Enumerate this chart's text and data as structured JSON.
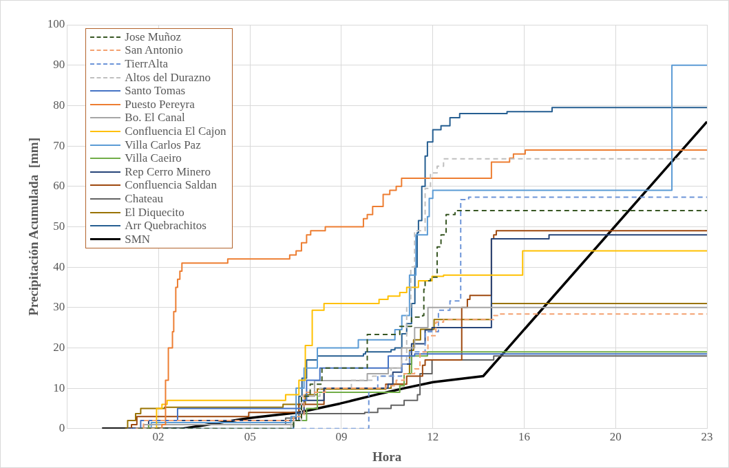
{
  "chart_data": {
    "type": "step",
    "xlabel": "Hora",
    "ylabel": "Precipitación Acumulada  [mm]",
    "xlim": [
      -1.86,
      23.14
    ],
    "xticks": [
      {
        "value": 1.71,
        "label": "02"
      },
      {
        "value": 5.29,
        "label": "05"
      },
      {
        "value": 8.86,
        "label": "09"
      },
      {
        "value": 12.43,
        "label": "12"
      },
      {
        "value": 16.0,
        "label": "16"
      },
      {
        "value": 19.57,
        "label": "20"
      },
      {
        "value": 23.14,
        "label": "23"
      }
    ],
    "ylim": [
      0,
      100
    ],
    "yticks": [
      0,
      10,
      20,
      30,
      40,
      50,
      60,
      70,
      80,
      90,
      100
    ],
    "grid": true,
    "legend": "top left",
    "marker": "none",
    "series": [
      {
        "name": "Jose Muñoz",
        "color": "#375623",
        "type": "step",
        "line_style": "dashed",
        "x": [
          0.92,
          6.99,
          7.3,
          7.64,
          8.1,
          9.87,
          11.14,
          11.6,
          12.03,
          12.08,
          12.13,
          12.34,
          12.6,
          12.75,
          12.95,
          13.3,
          23.14
        ],
        "values": [
          0,
          2,
          8,
          11,
          15,
          23.3,
          25.3,
          27.6,
          28,
          34.5,
          36.6,
          37.5,
          45,
          48,
          53,
          54,
          54
        ]
      },
      {
        "name": "San Antonio",
        "color": "#f4a170",
        "type": "step",
        "line_style": "dashed",
        "x": [
          0.82,
          1.13,
          6.99,
          7.4,
          8.23,
          10.6,
          11.0,
          11.31,
          11.72,
          11.93,
          12.24,
          12.55,
          12.85,
          14.81,
          15.03,
          23.14
        ],
        "values": [
          0,
          2,
          3,
          9,
          10,
          10.6,
          12,
          13.6,
          14.8,
          19,
          23,
          26.4,
          27,
          28,
          28.4,
          28.4
        ]
      },
      {
        "name": "TierrAlta",
        "color": "#6c94d8",
        "type": "step",
        "line_style": "dashed",
        "x": [
          7.3,
          9.93,
          10.28,
          11.21,
          11.52,
          12.13,
          12.65,
          13.1,
          13.48,
          13.52,
          13.83,
          23.14
        ],
        "values": [
          0,
          10,
          13,
          16,
          19,
          24,
          29.3,
          31.6,
          32.3,
          56.7,
          57.3,
          57.3
        ]
      },
      {
        "name": "Altos del Durazno",
        "color": "#bfbfbf",
        "type": "step",
        "line_style": "dashed",
        "x": [
          1.13,
          6.89,
          7.3,
          8.02,
          9.25,
          10.08,
          10.8,
          11.21,
          11.41,
          11.57,
          11.72,
          12.13,
          12.34,
          12.6,
          12.85,
          23.14
        ],
        "values": [
          0,
          2,
          8,
          10,
          12,
          13,
          15,
          17,
          30,
          40,
          49,
          59.5,
          63.3,
          65,
          66.8,
          66.8
        ]
      },
      {
        "name": "Santo Tomas",
        "color": "#4472c4",
        "type": "step",
        "line_style": "solid",
        "x": [
          0.51,
          1.02,
          2.46,
          7.3,
          7.5,
          8.02,
          10.69,
          11.72,
          23.14
        ],
        "values": [
          0,
          2,
          5,
          7,
          12,
          15,
          18,
          18.5,
          18.5
        ]
      },
      {
        "name": "Puesto Pereyra",
        "color": "#ed7d31",
        "type": "step",
        "line_style": "solid",
        "x": [
          0.82,
          1.85,
          1.99,
          2.1,
          2.26,
          2.31,
          2.39,
          2.46,
          2.55,
          2.63,
          4.42,
          6.84,
          7.09,
          7.3,
          7.5,
          7.66,
          8.23,
          9.72,
          9.87,
          10.08,
          10.49,
          10.75,
          11.0,
          11.21,
          14.72,
          15.43,
          15.58,
          16.04,
          23.14
        ],
        "values": [
          0,
          1,
          12,
          20,
          24,
          29,
          35,
          37,
          39,
          41,
          42,
          43,
          44,
          46,
          48,
          49,
          50,
          52,
          53,
          55,
          58,
          59,
          60,
          62,
          66,
          67,
          68,
          69,
          69
        ]
      },
      {
        "name": "Bo. El Canal",
        "color": "#a5a5a5",
        "type": "step",
        "line_style": "solid",
        "x": [
          0.71,
          1.13,
          6.99,
          7.3,
          7.81,
          9.87,
          10.69,
          11.21,
          11.72,
          12.24,
          23.14
        ],
        "values": [
          0,
          1,
          2,
          8,
          11.9,
          13.6,
          15,
          20,
          25,
          30,
          30
        ]
      },
      {
        "name": "Confluencia El Cajon",
        "color": "#ffc000",
        "type": "step",
        "line_style": "solid",
        "x": [
          1.43,
          1.64,
          1.85,
          2.05,
          6.68,
          7.2,
          7.45,
          7.72,
          8.18,
          10.33,
          10.68,
          11.14,
          11.41,
          11.87,
          12.4,
          12.85,
          15.94,
          23.14
        ],
        "values": [
          0,
          5,
          6,
          7,
          8.4,
          12,
          20.6,
          29.3,
          31,
          32,
          32.8,
          33.7,
          35,
          36.6,
          37.7,
          38,
          44,
          44
        ]
      },
      {
        "name": "Villa Carlos Paz",
        "color": "#5b9bd5",
        "type": "step",
        "line_style": "solid",
        "x": [
          1.13,
          1.43,
          6.89,
          7.09,
          7.4,
          7.92,
          9.52,
          10.95,
          11.22,
          11.52,
          11.77,
          12.22,
          12.29,
          12.43,
          21.77,
          23.14
        ],
        "values": [
          0,
          1.5,
          3,
          10,
          15,
          20,
          22,
          24.5,
          28,
          38,
          48,
          52.5,
          57,
          59,
          90,
          90
        ]
      },
      {
        "name": "Villa Caeiro",
        "color": "#70ad47",
        "type": "step",
        "line_style": "solid",
        "x": [
          0.82,
          1.33,
          6.99,
          7.5,
          7.92,
          11.14,
          11.31,
          11.6,
          12.22,
          23.14
        ],
        "values": [
          0,
          1,
          2,
          5,
          9,
          10.6,
          13.6,
          18,
          19,
          19
        ]
      },
      {
        "name": "Rep Cerro Minero",
        "color": "#264478",
        "type": "step",
        "line_style": "solid",
        "x": [
          0.82,
          1.33,
          7.09,
          7.4,
          8.18,
          10.68,
          10.87,
          11.22,
          11.6,
          12.13,
          12.4,
          14.72,
          16.97,
          23.14
        ],
        "values": [
          0,
          2,
          4,
          7,
          10,
          11,
          14,
          16,
          21,
          24.4,
          25,
          47,
          48,
          48
        ]
      },
      {
        "name": "Confluencia Saldan",
        "color": "#9e480e",
        "type": "step",
        "line_style": "solid",
        "x": [
          0.51,
          0.66,
          0.87,
          5.24,
          7.2,
          8.18,
          10.59,
          11.41,
          12.03,
          12.13,
          13.56,
          13.78,
          13.88,
          14.72,
          14.81,
          14.91,
          23.14
        ],
        "values": [
          0,
          1,
          3,
          4,
          6,
          10,
          11,
          13,
          15.7,
          17,
          30,
          32,
          33,
          47,
          48,
          49,
          49
        ]
      },
      {
        "name": "Chateau",
        "color": "#636363",
        "type": "step",
        "line_style": "solid",
        "x": [
          0.82,
          1.33,
          6.68,
          7.09,
          9.77,
          10.28,
          10.8,
          11.31,
          11.83,
          11.93,
          12.4,
          14.81,
          23.14
        ],
        "values": [
          0,
          1,
          2.6,
          3.7,
          4,
          5,
          5.8,
          7,
          8.4,
          13.6,
          17,
          18,
          18
        ]
      },
      {
        "name": "El Diquecito",
        "color": "#997300",
        "type": "step",
        "line_style": "solid",
        "x": [
          0.41,
          0.51,
          0.82,
          1.02,
          1.95,
          6.58,
          7.45,
          7.92,
          10.6,
          10.8,
          11.31,
          11.52,
          11.68,
          11.95,
          12.48,
          14.72,
          23.14
        ],
        "values": [
          0,
          2,
          3.7,
          5,
          5.3,
          6,
          8.4,
          9.8,
          10,
          11,
          13.6,
          19.4,
          22,
          24.6,
          27,
          31,
          31
        ]
      },
      {
        "name": "Arr Quebrachitos",
        "color": "#255e91",
        "type": "step",
        "line_style": "solid",
        "x": [
          0.71,
          6.99,
          7.2,
          7.32,
          7.5,
          7.92,
          9.72,
          9.8,
          10.8,
          10.95,
          11.22,
          11.41,
          11.6,
          11.73,
          11.82,
          11.87,
          12.0,
          12.13,
          12.22,
          12.43,
          12.75,
          13.1,
          13.48,
          15.33,
          17.09,
          23.14
        ],
        "values": [
          0,
          2,
          8,
          12.5,
          17,
          18,
          18.5,
          19,
          19.5,
          20,
          23.5,
          26,
          31,
          40,
          48.5,
          51.5,
          60,
          67.5,
          71,
          74,
          75,
          77,
          78,
          78.5,
          79.5,
          79.5
        ]
      },
      {
        "name": "SMN",
        "color": "#000000",
        "type": "line",
        "line_style": "solid",
        "x": [
          -0.49,
          2.67,
          5.24,
          7.2,
          8.8,
          10.28,
          11.31,
          12.44,
          14.4,
          23.14
        ],
        "values": [
          0,
          0,
          2.6,
          4,
          6.2,
          8.5,
          10,
          11.5,
          13,
          76
        ]
      }
    ]
  }
}
